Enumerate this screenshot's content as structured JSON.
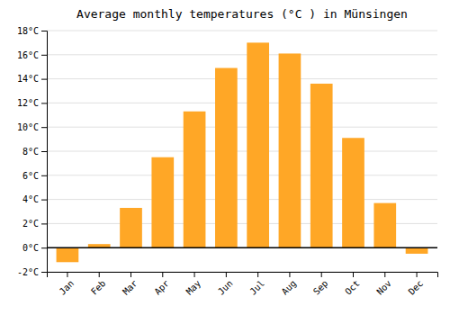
{
  "chart_data": {
    "type": "bar",
    "title": "Average monthly temperatures (°C ) in Münsingen",
    "categories": [
      "Jan",
      "Feb",
      "Mar",
      "Apr",
      "May",
      "Jun",
      "Jul",
      "Aug",
      "Sep",
      "Oct",
      "Nov",
      "Dec"
    ],
    "values": [
      -1.2,
      0.3,
      3.3,
      7.5,
      11.3,
      14.9,
      17.0,
      16.1,
      13.6,
      9.1,
      3.7,
      -0.5
    ],
    "color": "#FFA726",
    "ylim": [
      -2,
      18
    ],
    "yticks": [
      {
        "value": -2,
        "label": "-2°C"
      },
      {
        "value": 0,
        "label": "0°C"
      },
      {
        "value": 2,
        "label": "2°C"
      },
      {
        "value": 4,
        "label": "4°C"
      },
      {
        "value": 6,
        "label": "6°C"
      },
      {
        "value": 8,
        "label": "8°C"
      },
      {
        "value": 10,
        "label": "10°C"
      },
      {
        "value": 12,
        "label": "12°C"
      },
      {
        "value": 14,
        "label": "14°C"
      },
      {
        "value": 16,
        "label": "16°C"
      },
      {
        "value": 18,
        "label": "18°C"
      }
    ],
    "grid": true
  }
}
